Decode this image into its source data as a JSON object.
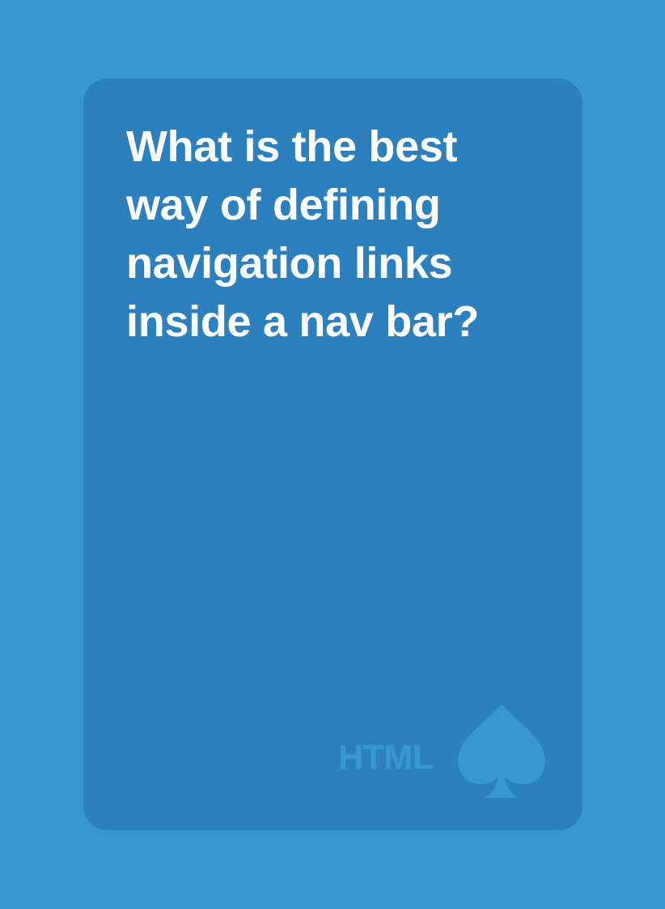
{
  "card": {
    "question": "What is the best way of defining navigation links inside a nav bar?",
    "category": "HTML",
    "suit_icon": "spade-icon"
  },
  "colors": {
    "background": "#3697d3",
    "card": "#2c80bd",
    "text": "#ffffff",
    "accent": "#3697d3"
  }
}
